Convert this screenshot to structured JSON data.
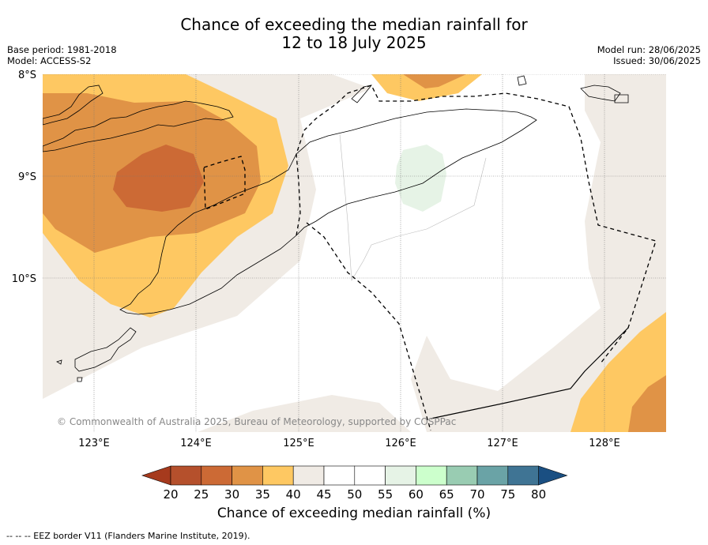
{
  "title": {
    "line1": "Chance of exceeding the median rainfall for",
    "line2": "12 to 18 July 2025"
  },
  "meta": {
    "base_period": "Base period: 1981-2018",
    "model": "Model: ACCESS-S2",
    "model_run": "Model run: 28/06/2025",
    "issued": "Issued: 30/06/2025"
  },
  "map": {
    "lat_labels": [
      "8°S",
      "9°S",
      "10°S"
    ],
    "lon_labels": [
      "123°E",
      "124°E",
      "125°E",
      "126°E",
      "127°E",
      "128°E"
    ],
    "copyright": "© Commonwealth of Australia 2025, Bureau of Meteorology, supported by COSPPac"
  },
  "colorbar": {
    "ticks": [
      "20",
      "25",
      "30",
      "35",
      "40",
      "45",
      "50",
      "55",
      "60",
      "65",
      "70",
      "75",
      "80"
    ],
    "colors": [
      "#a63a1d",
      "#b5502c",
      "#cc6a35",
      "#e09346",
      "#fec862",
      "#f0ebe5",
      "#ffffff",
      "#ffffff",
      "#e6f3e6",
      "#ccffcc",
      "#99ccb2",
      "#6aa3a6",
      "#3f7494",
      "#1a4f82"
    ],
    "label": "Chance of exceeding median rainfall (%)"
  },
  "footer": "--  --  -- EEZ border V11 (Flanders Marine Institute, 2019)."
}
